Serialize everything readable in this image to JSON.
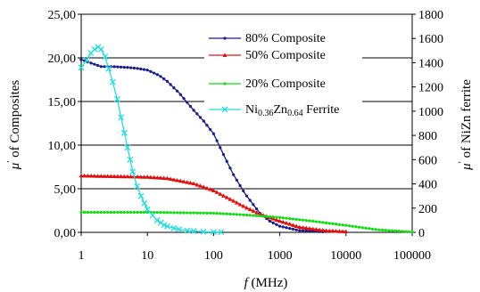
{
  "chart_data": {
    "type": "line",
    "title": "",
    "x_scale": "log",
    "xlim": [
      1,
      100000
    ],
    "ylim_left": [
      0,
      25
    ],
    "ylim_right": [
      0,
      1800
    ],
    "xlabel": {
      "italic": "f",
      "rest": " (MHz)"
    },
    "ylabel_left": {
      "italic": "μ",
      "prime": "′",
      "rest": " of Composites"
    },
    "ylabel_right": {
      "italic": "μ",
      "prime": "′",
      "rest": " of NiZn ferrite"
    },
    "x_ticks": [
      "1",
      "10",
      "100",
      "1000",
      "10000",
      "100000"
    ],
    "x_tick_values": [
      1,
      10,
      100,
      1000,
      10000,
      100000
    ],
    "y_left_ticks": [
      "0,00",
      "5,00",
      "10,00",
      "15,00",
      "20,00",
      "25,00"
    ],
    "y_left_tick_values": [
      0,
      5,
      10,
      15,
      20,
      25
    ],
    "y_right_ticks": [
      "0",
      "200",
      "400",
      "600",
      "800",
      "1000",
      "1200",
      "1400",
      "1600",
      "1800"
    ],
    "y_right_tick_values": [
      0,
      200,
      400,
      600,
      800,
      1000,
      1200,
      1400,
      1600,
      1800
    ],
    "grid": "horizontal major lines (left axis)",
    "legend_position": "top-right",
    "series": [
      {
        "name": "80% Composite",
        "axis": "left",
        "color": "#1a1a8a",
        "marker": "dot",
        "x": [
          1,
          2,
          3,
          5,
          7,
          10,
          15,
          20,
          30,
          50,
          70,
          100,
          150,
          200,
          300,
          500,
          700,
          1000,
          2000,
          5000
        ],
        "y": [
          19.8,
          19.0,
          19.0,
          18.9,
          18.8,
          18.6,
          18.0,
          17.3,
          16.0,
          14.0,
          12.8,
          11.3,
          8.5,
          6.6,
          4.4,
          2.2,
          1.3,
          0.7,
          0.2,
          0.05
        ]
      },
      {
        "name": "50% Composite",
        "axis": "left",
        "color": "#e01010",
        "marker": "triangle",
        "x": [
          1,
          2,
          5,
          10,
          20,
          50,
          100,
          200,
          300,
          500,
          1000,
          2000,
          5000,
          10000
        ],
        "y": [
          6.5,
          6.45,
          6.4,
          6.35,
          6.2,
          5.6,
          4.8,
          3.6,
          2.9,
          2.1,
          1.3,
          0.6,
          0.2,
          0.1
        ]
      },
      {
        "name": "20% Composite",
        "axis": "left",
        "color": "#11dd11",
        "marker": "dot",
        "x": [
          1,
          10,
          100,
          300,
          1000,
          3000,
          10000,
          30000,
          100000
        ],
        "y": [
          2.3,
          2.3,
          2.2,
          2.0,
          1.7,
          1.3,
          0.8,
          0.3,
          0.05
        ]
      },
      {
        "name": "Ni0.36Zn0.64 Ferrite",
        "name_parts": {
          "a": "Ni",
          "sub1": "0.36",
          "b": "Zn",
          "sub2": "0.64",
          "c": " Ferrite"
        },
        "axis": "right",
        "color": "#22dddd",
        "marker": "x",
        "x": [
          1,
          1.2,
          1.4,
          1.6,
          1.8,
          2,
          2.3,
          2.6,
          3,
          3.5,
          4,
          4.5,
          5,
          5.5,
          6,
          7,
          8,
          9,
          10,
          12,
          14,
          16,
          18,
          20,
          25,
          30,
          40,
          50,
          70,
          100,
          130
        ],
        "y": [
          1360,
          1420,
          1480,
          1510,
          1530,
          1510,
          1450,
          1350,
          1240,
          1100,
          950,
          820,
          700,
          600,
          500,
          380,
          300,
          240,
          190,
          140,
          100,
          80,
          60,
          50,
          35,
          25,
          15,
          10,
          5,
          3,
          2
        ]
      }
    ]
  }
}
